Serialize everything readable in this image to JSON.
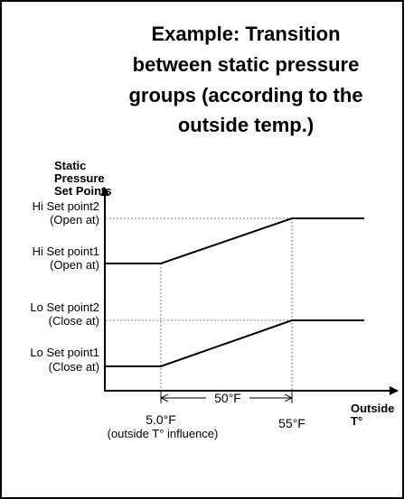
{
  "title": [
    "Example: Transition",
    "between static pressure",
    "groups (according to the",
    "outside temp.)"
  ],
  "y_axis_label": [
    "Static",
    "Pressure",
    "Set Points"
  ],
  "set_points": [
    {
      "name": "Hi Set point2",
      "note": "(Open at)"
    },
    {
      "name": "Hi Set point1",
      "note": "(Open at)"
    },
    {
      "name": "Lo Set point2",
      "note": "(Close at)"
    },
    {
      "name": "Lo Set point1",
      "note": "(Close at)"
    }
  ],
  "span_label": "50°F",
  "x_start": {
    "label": "5.0°F",
    "note": "(outside T° influence)"
  },
  "x_end": {
    "label": "55°F"
  },
  "x_axis_label": [
    "Outside",
    "T°"
  ]
}
